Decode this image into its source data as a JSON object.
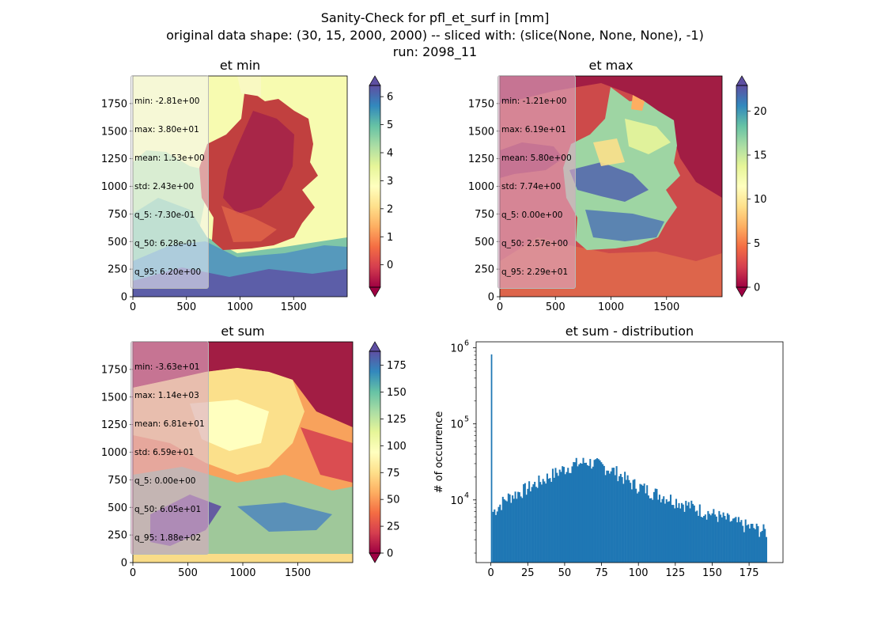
{
  "figure": {
    "title_line1": "Sanity-Check for pfl_et_surf in [mm]",
    "title_line2": "original data shape: (30, 15, 2000, 2000) -- sliced with: (slice(None, None, None), -1)",
    "title_line3": "run: 2098_11"
  },
  "colormap": {
    "name": "Spectral",
    "stops": [
      "#9e0142",
      "#d53e4f",
      "#f46d43",
      "#fdae61",
      "#fee08b",
      "#ffffbf",
      "#e6f598",
      "#abdda4",
      "#66c2a5",
      "#3288bd",
      "#5e4fa2"
    ]
  },
  "chart_data": [
    {
      "type": "heatmap",
      "title": "et min",
      "x_ticks": [
        "0",
        "500",
        "1000",
        "1500"
      ],
      "y_ticks": [
        "0",
        "250",
        "500",
        "750",
        "1000",
        "1250",
        "1500",
        "1750"
      ],
      "xlim": [
        0,
        2000
      ],
      "ylim": [
        0,
        2000
      ],
      "colorbar": {
        "vmin": -0.8,
        "vmax": 6.4,
        "ticks": [
          0,
          1,
          2,
          3,
          4,
          5,
          6
        ],
        "extend": "both"
      },
      "stats": [
        "min: -2.81e+00",
        "max: 3.80e+01",
        "mean: 1.53e+00",
        "std: 2.43e+00",
        "q_5: -7.30e-01",
        "q_50: 6.28e-01",
        "q_95: 6.20e+00"
      ]
    },
    {
      "type": "heatmap",
      "title": "et max",
      "x_ticks": [
        "0",
        "500",
        "1000",
        "1500"
      ],
      "y_ticks": [
        "0",
        "250",
        "500",
        "750",
        "1000",
        "1250",
        "1500",
        "1750"
      ],
      "xlim": [
        0,
        2000
      ],
      "ylim": [
        0,
        2000
      ],
      "colorbar": {
        "vmin": 0,
        "vmax": 22.9,
        "ticks": [
          0,
          5,
          10,
          15,
          20
        ],
        "extend": "both"
      },
      "stats": [
        "min: -1.21e+00",
        "max: 6.19e+01",
        "mean: 5.80e+00",
        "std: 7.74e+00",
        "q_5: 0.00e+00",
        "q_50: 2.57e+00",
        "q_95: 2.29e+01"
      ]
    },
    {
      "type": "heatmap",
      "title": "et sum",
      "x_ticks": [
        "0",
        "500",
        "1000",
        "1500"
      ],
      "y_ticks": [
        "0",
        "250",
        "500",
        "750",
        "1000",
        "1250",
        "1500",
        "1750"
      ],
      "xlim": [
        0,
        2000
      ],
      "ylim": [
        0,
        2000
      ],
      "colorbar": {
        "vmin": 0,
        "vmax": 188,
        "ticks": [
          0,
          25,
          50,
          75,
          100,
          125,
          150,
          175
        ],
        "extend": "both"
      },
      "stats": [
        "min: -3.63e+01",
        "max: 1.14e+03",
        "mean: 6.81e+01",
        "std: 6.59e+01",
        "q_5: 0.00e+00",
        "q_50: 6.05e+01",
        "q_95: 1.88e+02"
      ]
    },
    {
      "type": "bar",
      "title": "et sum - distribution",
      "ylabel": "# of occurrence",
      "yscale": "log",
      "xlim": [
        -10,
        198
      ],
      "ylim": [
        1500,
        1200000
      ],
      "x_ticks": [
        0,
        25,
        50,
        75,
        100,
        125,
        150,
        175
      ],
      "y_ticks": [
        {
          "value": 10000,
          "base": "10",
          "exp": "4"
        },
        {
          "value": 100000,
          "base": "10",
          "exp": "5"
        },
        {
          "value": 1000000,
          "base": "10",
          "exp": "6"
        }
      ],
      "bin_width": 0.94,
      "spike": {
        "x": 0,
        "value": 820000
      },
      "envelope": [
        [
          1,
          7000
        ],
        [
          10,
          10500
        ],
        [
          25,
          14500
        ],
        [
          40,
          21000
        ],
        [
          55,
          29000
        ],
        [
          65,
          32000
        ],
        [
          75,
          28000
        ],
        [
          85,
          23000
        ],
        [
          95,
          16500
        ],
        [
          110,
          12500
        ],
        [
          125,
          9800
        ],
        [
          140,
          7600
        ],
        [
          155,
          6000
        ],
        [
          170,
          4700
        ],
        [
          187,
          3800
        ]
      ],
      "color": "#1f77b4"
    }
  ]
}
